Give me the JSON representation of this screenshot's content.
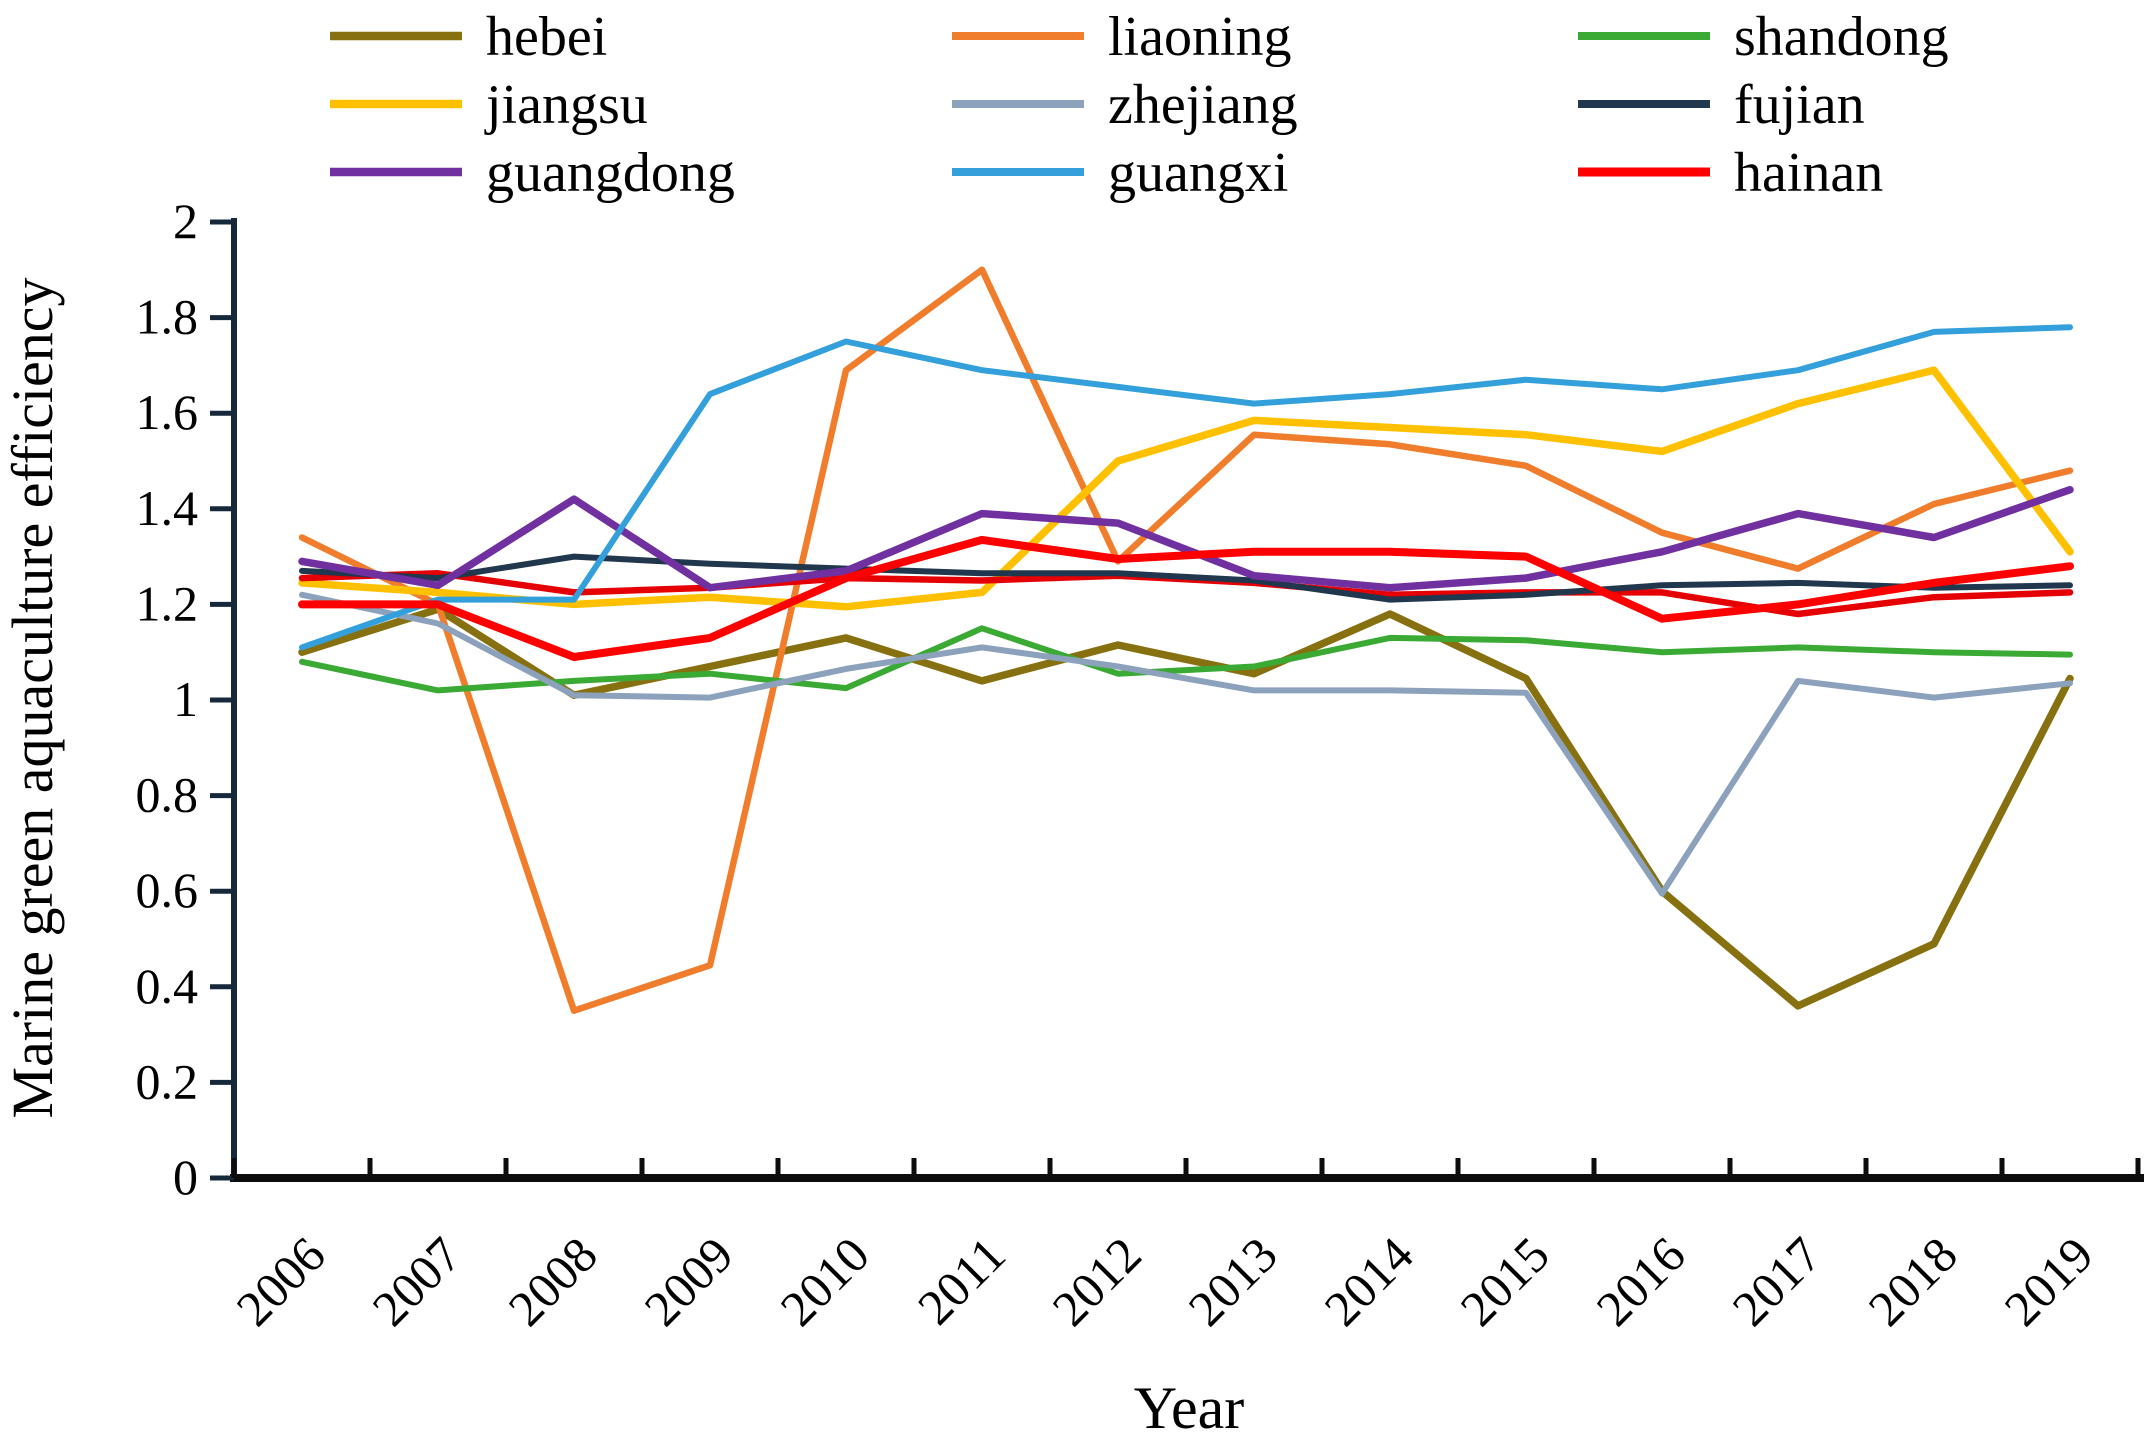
{
  "chart_data": {
    "type": "line",
    "title": "",
    "xlabel": "Year",
    "ylabel": "Marine green aquaculture efficiency",
    "x": [
      2006,
      2007,
      2008,
      2009,
      2010,
      2011,
      2012,
      2013,
      2014,
      2015,
      2016,
      2017,
      2018,
      2019
    ],
    "x_tick_labels": [
      "2006",
      "2007",
      "2008",
      "2009",
      "2010",
      "2011",
      "2012",
      "2013",
      "2014",
      "2015",
      "2016",
      "2017",
      "2018",
      "2019"
    ],
    "ylim": [
      0,
      2
    ],
    "y_tick_labels": [
      "0",
      "0.2",
      "0.4",
      "0.6",
      "0.8",
      "1",
      "1.2",
      "1.4",
      "1.6",
      "1.8",
      "2"
    ],
    "y_tick_values": [
      0,
      0.2,
      0.4,
      0.6,
      0.8,
      1.0,
      1.2,
      1.4,
      1.6,
      1.8,
      2.0
    ],
    "grid": false,
    "markers": false,
    "legend_position": "top",
    "legend_layout": "3-column grid, row-major",
    "series": [
      {
        "name": "hebei",
        "color": "#87700F",
        "line_width": 7.5,
        "in_legend": true,
        "values": [
          1.1,
          1.19,
          1.01,
          1.07,
          1.13,
          1.04,
          1.115,
          1.055,
          1.18,
          1.045,
          0.6,
          0.36,
          0.49,
          1.045
        ]
      },
      {
        "name": "liaoning",
        "color": "#F07D2C",
        "line_width": 6.5,
        "in_legend": true,
        "values": [
          1.34,
          1.2,
          0.35,
          0.445,
          1.69,
          1.9,
          1.29,
          1.555,
          1.535,
          1.49,
          1.35,
          1.275,
          1.41,
          1.48
        ]
      },
      {
        "name": "shandong",
        "color": "#3AAA35",
        "line_width": 6.0,
        "in_legend": true,
        "values": [
          1.08,
          1.02,
          1.04,
          1.055,
          1.025,
          1.15,
          1.055,
          1.07,
          1.13,
          1.125,
          1.1,
          1.11,
          1.1,
          1.095
        ]
      },
      {
        "name": "jiangsu",
        "color": "#FFC000",
        "line_width": 7.5,
        "in_legend": true,
        "values": [
          1.245,
          1.225,
          1.2,
          1.215,
          1.195,
          1.225,
          1.5,
          1.585,
          1.57,
          1.555,
          1.52,
          1.62,
          1.69,
          1.31
        ]
      },
      {
        "name": "zhejiang",
        "color": "#8CA1BC",
        "line_width": 6.0,
        "in_legend": true,
        "values": [
          1.22,
          1.16,
          1.01,
          1.005,
          1.065,
          1.11,
          1.07,
          1.02,
          1.02,
          1.015,
          0.595,
          1.04,
          1.005,
          1.035
        ]
      },
      {
        "name": "fujian",
        "color": "#21374D",
        "line_width": 6.0,
        "in_legend": true,
        "values": [
          1.27,
          1.255,
          1.3,
          1.285,
          1.275,
          1.265,
          1.265,
          1.25,
          1.21,
          1.22,
          1.24,
          1.245,
          1.235,
          1.24
        ]
      },
      {
        "name": "guangdong",
        "color": "#7030A0",
        "line_width": 7.5,
        "in_legend": true,
        "values": [
          1.29,
          1.24,
          1.42,
          1.235,
          1.27,
          1.39,
          1.37,
          1.26,
          1.235,
          1.255,
          1.31,
          1.39,
          1.34,
          1.44
        ]
      },
      {
        "name": "guangxi",
        "color": "#339FDB",
        "line_width": 6.0,
        "in_legend": true,
        "values": [
          1.11,
          1.21,
          1.21,
          1.64,
          1.75,
          1.69,
          1.655,
          1.62,
          1.64,
          1.67,
          1.65,
          1.69,
          1.77,
          1.78
        ]
      },
      {
        "name": "hainan",
        "color": "#FE0000",
        "line_width": 8.0,
        "in_legend": true,
        "values": [
          1.2,
          1.2,
          1.09,
          1.13,
          1.255,
          1.335,
          1.295,
          1.31,
          1.31,
          1.3,
          1.17,
          1.2,
          1.245,
          1.28
        ]
      },
      {
        "name": "unlabeled-red-line",
        "color": "#E50004",
        "line_width": 6.5,
        "in_legend": false,
        "note": "second red line visible in plot but absent from legend; runs close to fujian",
        "values": [
          1.255,
          1.265,
          1.225,
          1.235,
          1.255,
          1.25,
          1.26,
          1.245,
          1.22,
          1.225,
          1.225,
          1.18,
          1.215,
          1.225
        ]
      }
    ]
  },
  "axes_style": {
    "axis_color": "#16293B",
    "x_axis_color": "#0D0D0D",
    "text_color": "#000000"
  }
}
